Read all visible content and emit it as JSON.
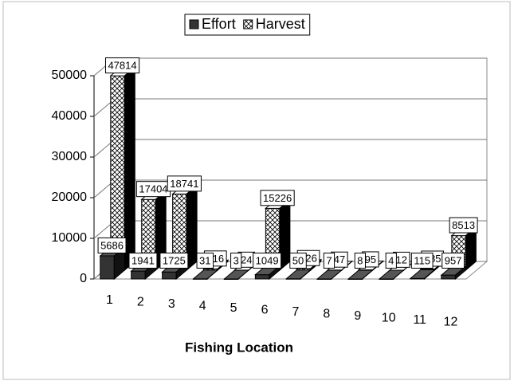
{
  "chart_data": {
    "type": "bar3d",
    "x_label": "Fishing Location",
    "categories": [
      "1",
      "2",
      "3",
      "4",
      "5",
      "6",
      "7",
      "8",
      "9",
      "10",
      "11",
      "12"
    ],
    "series": [
      {
        "name": "Effort",
        "color": "#333333",
        "values": [
          5686,
          1941,
          1725,
          31,
          3,
          1049,
          50,
          7,
          8,
          4,
          115,
          957
        ]
      },
      {
        "name": "Harvest",
        "color": "hatch",
        "values": [
          47814,
          17404,
          18741,
          316,
          24,
          15226,
          426,
          47,
          95,
          12,
          285,
          8513
        ]
      }
    ],
    "ylim": [
      0,
      50000
    ],
    "yticks": [
      0,
      10000,
      20000,
      30000,
      40000,
      50000
    ],
    "grid": true,
    "legend": "top"
  }
}
